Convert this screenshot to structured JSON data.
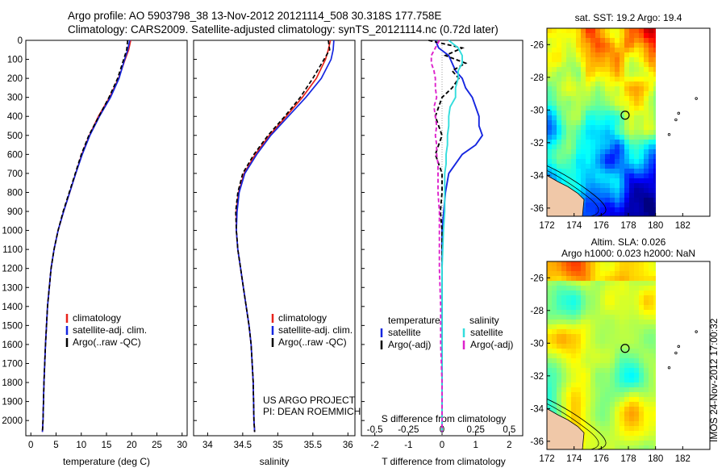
{
  "header": {
    "line1": "Argo profile: AO 5903798_38 13-Nov-2012 20121114_508 30.318S 177.758E",
    "line2": "Climatology: CARS2009. Satellite-adjusted climatology: synTS_20121114.nc (0.72d later)"
  },
  "stamp": "IMOS 24-Nov-2012 17:00:32",
  "colors": {
    "climatology": "#e8231b",
    "satellite_adj": "#1526e0",
    "argo": "#000000",
    "satellite_diff_t": "#1526e0",
    "satellite_diff_s": "#33dddd",
    "argo_diff_s": "#dd22cc"
  },
  "chart_data": [
    {
      "type": "line",
      "panel": "temperature",
      "xlabel": "temperature (deg C)",
      "ylabel": "",
      "xlim": [
        -1,
        31
      ],
      "ylim": [
        2080,
        0
      ],
      "xticks": [
        0,
        5,
        10,
        15,
        20,
        25,
        30
      ],
      "yticks": [
        0,
        100,
        200,
        300,
        400,
        500,
        600,
        700,
        800,
        900,
        1000,
        1100,
        1200,
        1300,
        1400,
        1500,
        1600,
        1700,
        1800,
        1900,
        2000
      ],
      "legend": [
        "climatology",
        "satellite-adj. clim.",
        "Argo(..raw -QC)"
      ],
      "legend_position": "lower-center",
      "depth": [
        0,
        50,
        100,
        200,
        300,
        400,
        500,
        600,
        700,
        800,
        900,
        1000,
        1100,
        1200,
        1400,
        1600,
        1800,
        2000,
        2060
      ],
      "series": [
        {
          "name": "climatology",
          "values": [
            19.8,
            19.4,
            18.7,
            17.4,
            15.6,
            13.4,
            11.6,
            10.1,
            8.9,
            7.7,
            6.5,
            5.4,
            4.6,
            4.0,
            3.3,
            2.9,
            2.6,
            2.4,
            2.3
          ]
        },
        {
          "name": "satellite-adj. clim.",
          "values": [
            19.6,
            19.2,
            18.6,
            17.5,
            15.8,
            13.6,
            11.7,
            10.2,
            8.9,
            7.7,
            6.5,
            5.4,
            4.6,
            4.0,
            3.3,
            2.9,
            2.6,
            2.4,
            2.3
          ]
        },
        {
          "name": "Argo(..raw -QC)",
          "values": [
            19.2,
            19.0,
            18.4,
            17.2,
            15.5,
            13.5,
            11.5,
            10.0,
            8.8,
            7.6,
            6.4,
            5.4,
            4.6,
            4.0,
            3.3,
            2.9,
            2.6,
            2.4,
            2.3
          ]
        }
      ]
    },
    {
      "type": "line",
      "panel": "salinity",
      "xlabel": "salinity",
      "xlim": [
        33.8,
        36.1
      ],
      "ylim": [
        2080,
        0
      ],
      "xticks": [
        34,
        34.5,
        35,
        35.5,
        36
      ],
      "xticklabels": [
        "34",
        "34.5",
        "35",
        "35.5",
        "36"
      ],
      "legend": [
        "climatology",
        "satellite-adj. clim.",
        "Argo(..raw -QC)"
      ],
      "legend_position": "lower-center",
      "annotation": [
        "US ARGO PROJECT",
        "PI: DEAN ROEMMICH"
      ],
      "depth": [
        0,
        50,
        100,
        200,
        300,
        400,
        500,
        600,
        700,
        800,
        900,
        1000,
        1100,
        1200,
        1300,
        1400,
        1500,
        1600,
        1800,
        2000,
        2060
      ],
      "series": [
        {
          "name": "climatology",
          "values": [
            35.75,
            35.72,
            35.68,
            35.55,
            35.35,
            35.12,
            34.88,
            34.68,
            34.52,
            34.44,
            34.41,
            34.41,
            34.43,
            34.47,
            34.51,
            34.55,
            34.59,
            34.62,
            34.65,
            34.66,
            34.67
          ]
        },
        {
          "name": "satellite-adj. clim.",
          "values": [
            35.8,
            35.79,
            35.76,
            35.62,
            35.4,
            35.15,
            34.9,
            34.7,
            34.53,
            34.45,
            34.42,
            34.41,
            34.43,
            34.47,
            34.51,
            34.55,
            34.59,
            34.62,
            34.65,
            34.66,
            34.67
          ]
        },
        {
          "name": "Argo(..raw -QC)",
          "values": [
            35.72,
            35.74,
            35.66,
            35.5,
            35.32,
            35.1,
            34.86,
            34.66,
            34.5,
            34.43,
            34.4,
            34.41,
            34.43,
            34.47,
            34.51,
            34.55,
            34.59,
            34.62,
            34.65,
            34.66,
            34.67
          ]
        }
      ]
    },
    {
      "type": "line",
      "panel": "difference",
      "xlabel": "T difference from climatology",
      "xlabel2": "S difference from climatology",
      "xlim": [
        -2.4,
        2.4
      ],
      "ylim": [
        2080,
        0
      ],
      "xticks": [
        -2,
        -1,
        0,
        1,
        2
      ],
      "xticks_s": [
        -0.5,
        -0.25,
        0,
        0.25,
        0.5
      ],
      "xticklabels_s": [
        "-0.5",
        "-0.25",
        "0",
        "0.25",
        "0.5"
      ],
      "legend_groups": [
        "temperature",
        "salinity"
      ],
      "legend": [
        "satellite",
        "Argo(-adj)",
        "satellite",
        "Argo(-adj)"
      ],
      "legend_position": "lower-center",
      "depth": [
        0,
        40,
        80,
        120,
        160,
        200,
        250,
        300,
        350,
        400,
        450,
        500,
        550,
        600,
        650,
        700,
        800,
        900,
        1000,
        1200,
        1400,
        1600,
        1800,
        2000,
        2060
      ],
      "series": [
        {
          "name": "temperature satellite",
          "values": [
            -0.2,
            -0.1,
            0.2,
            0.3,
            0.4,
            0.6,
            0.7,
            0.9,
            1.0,
            1.1,
            1.1,
            1.2,
            1.0,
            0.6,
            0.4,
            0.2,
            0.1,
            0.05,
            0.0,
            0.0,
            0.0,
            0.0,
            0.0,
            0.0,
            0.0
          ]
        },
        {
          "name": "temperature Argo(-adj)",
          "values": [
            -0.4,
            0.6,
            0.1,
            0.7,
            0.3,
            0.5,
            0.3,
            0.0,
            -0.1,
            -0.2,
            -0.1,
            0.0,
            -0.1,
            -0.2,
            -0.1,
            0.0,
            0.0,
            -0.05,
            0.0,
            0.0,
            0.0,
            0.0,
            0.0,
            0.0,
            0.0
          ]
        },
        {
          "name": "salinity satellite",
          "values": [
            0.05,
            0.12,
            0.15,
            0.15,
            0.12,
            0.12,
            0.1,
            0.1,
            0.06,
            0.05,
            0.05,
            0.04,
            0.04,
            0.03,
            0.03,
            0.02,
            0.02,
            0.02,
            0.01,
            0.0,
            0.0,
            0.0,
            0.0,
            0.0,
            0.0
          ]
        },
        {
          "name": "salinity Argo(-adj)",
          "values": [
            -0.02,
            -0.05,
            -0.08,
            -0.08,
            -0.06,
            -0.05,
            -0.05,
            -0.04,
            -0.06,
            -0.05,
            -0.04,
            -0.05,
            -0.04,
            -0.04,
            -0.03,
            -0.03,
            -0.03,
            -0.02,
            -0.02,
            -0.02,
            -0.01,
            -0.01,
            0.0,
            0.0,
            0.0
          ]
        }
      ]
    },
    {
      "type": "heatmap",
      "panel": "sst-map",
      "title": "sat. SST: 19.2 Argo: 19.4",
      "xlim": [
        172,
        184
      ],
      "ylim": [
        -36.5,
        -25
      ],
      "xticks": [
        172,
        174,
        176,
        178,
        180,
        182
      ],
      "yticks": [
        -26,
        -28,
        -30,
        -32,
        -34,
        -36
      ],
      "marker": {
        "lon": 177.758,
        "lat": -30.318
      }
    },
    {
      "type": "heatmap",
      "panel": "sla-map",
      "title": "Altim. SLA: 0.026",
      "title2": "Argo h1000: 0.023 h2000: NaN",
      "xlim": [
        172,
        184
      ],
      "ylim": [
        -36.5,
        -25
      ],
      "xticks": [
        172,
        174,
        176,
        178,
        180,
        182
      ],
      "yticks": [
        -26,
        -28,
        -30,
        -32,
        -34,
        -36
      ],
      "marker": {
        "lon": 177.758,
        "lat": -30.318
      }
    }
  ]
}
